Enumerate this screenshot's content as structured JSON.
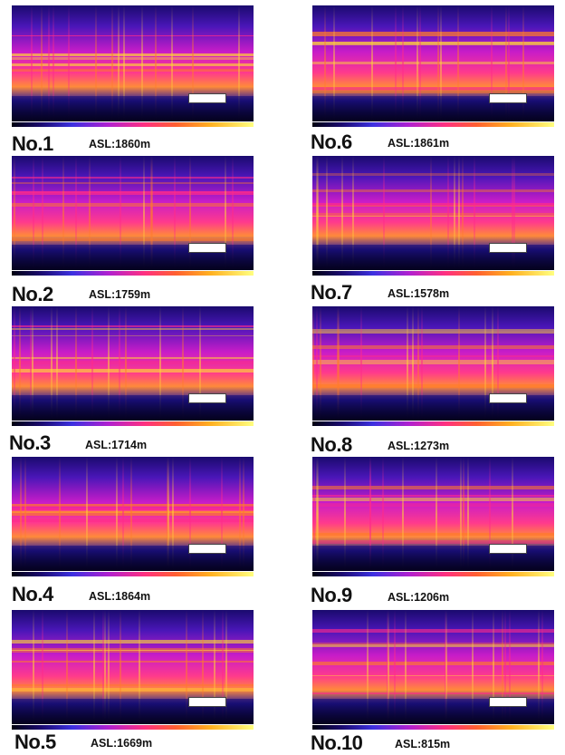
{
  "panels": [
    {
      "no": "No.1",
      "asl": "ASL:1860m"
    },
    {
      "no": "No.2",
      "asl": "ASL:1759m"
    },
    {
      "no": "No.3",
      "asl": "ASL:1714m"
    },
    {
      "no": "No.4",
      "asl": "ASL:1864m"
    },
    {
      "no": "No.5",
      "asl": "ASL:1669m"
    },
    {
      "no": "No.6",
      "asl": "ASL:1861m"
    },
    {
      "no": "No.7",
      "asl": "ASL:1578m"
    },
    {
      "no": "No.8",
      "asl": "ASL:1273m"
    },
    {
      "no": "No.9",
      "asl": "ASL:1206m"
    },
    {
      "no": "No.10",
      "asl": "ASL:815m"
    }
  ]
}
